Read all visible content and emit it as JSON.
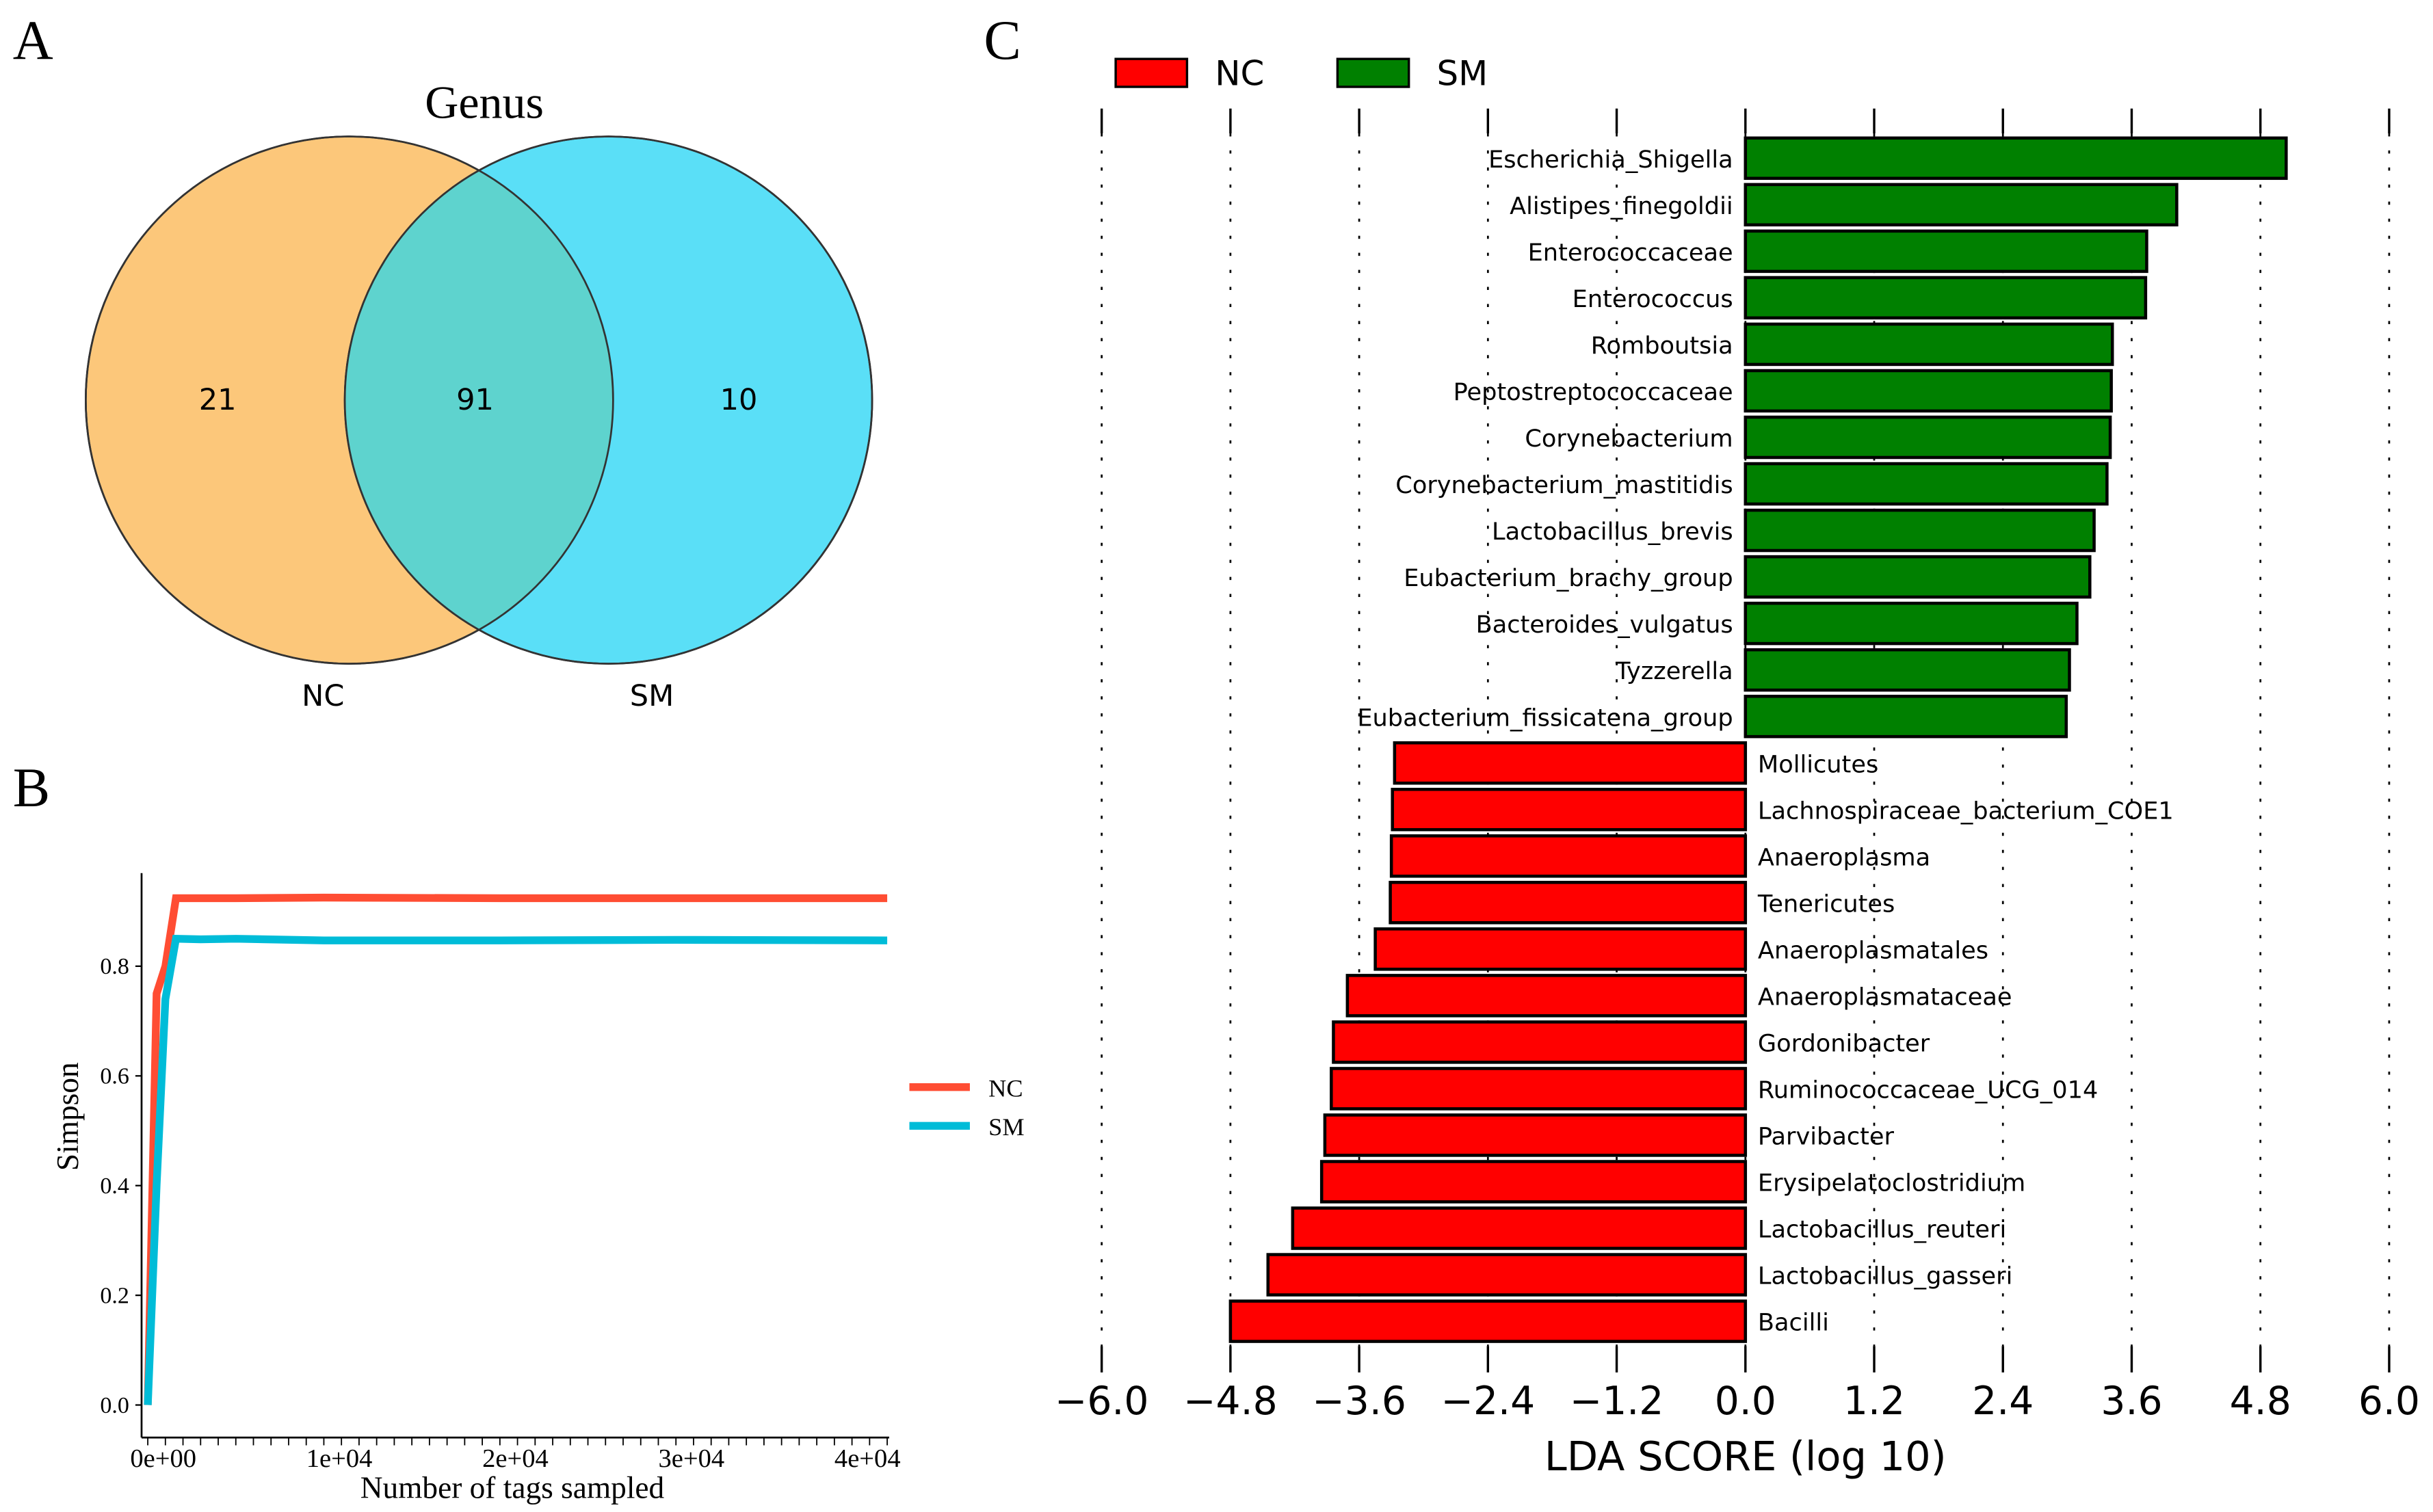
{
  "panel_labels": {
    "a": "A",
    "b": "B",
    "c": "C"
  },
  "chart_data": [
    {
      "type": "venn",
      "title": "Genus",
      "sets": [
        {
          "name": "NC",
          "unique": 21,
          "color": "#FCC77A"
        },
        {
          "name": "SM",
          "unique": 10,
          "color": "#5ADFF7"
        }
      ],
      "shared": 91,
      "overlap_color": "#5ED3CE"
    },
    {
      "type": "line",
      "xlabel": "Number of tags sampled",
      "ylabel": "Simpson",
      "xticks": [
        "0e+00",
        "1e+04",
        "2e+04",
        "3e+04",
        "4e+04"
      ],
      "yticks": [
        "0.0",
        "0.2",
        "0.4",
        "0.6",
        "0.8"
      ],
      "xlim": [
        0,
        42000
      ],
      "ylim": [
        0,
        0.95
      ],
      "legend_position": "right",
      "series": [
        {
          "name": "NC",
          "color": "#FF4D33",
          "x": [
            0,
            500,
            1000,
            1600,
            5000,
            10000,
            20000,
            30000,
            42000
          ],
          "y": [
            0.0,
            0.75,
            0.8,
            0.924,
            0.924,
            0.925,
            0.924,
            0.924,
            0.924
          ]
        },
        {
          "name": "SM",
          "color": "#00BCD8",
          "x": [
            0,
            500,
            1000,
            1600,
            3000,
            5000,
            10000,
            20000,
            30000,
            42000
          ],
          "y": [
            0.0,
            0.4,
            0.74,
            0.85,
            0.849,
            0.85,
            0.847,
            0.847,
            0.848,
            0.847
          ]
        }
      ]
    },
    {
      "type": "bar",
      "orientation": "horizontal",
      "xlabel": "LDA SCORE (log 10)",
      "xlim": [
        -6.0,
        6.0
      ],
      "xticks": [
        "−6.0",
        "−4.8",
        "−3.6",
        "−2.4",
        "−1.2",
        "0.0",
        "1.2",
        "2.4",
        "3.6",
        "4.8",
        "6.0"
      ],
      "legend": [
        {
          "name": "NC",
          "color": "#FF0000"
        },
        {
          "name": "SM",
          "color": "#008000"
        }
      ],
      "legend_position": "top-left",
      "grid": "vertical dotted",
      "bars": [
        {
          "label": "Escherichia_Shigella",
          "group": "SM",
          "value": 5.04
        },
        {
          "label": "Alistipes_finegoldii",
          "group": "SM",
          "value": 4.02
        },
        {
          "label": "Enterococcaceae",
          "group": "SM",
          "value": 3.74
        },
        {
          "label": "Enterococcus",
          "group": "SM",
          "value": 3.73
        },
        {
          "label": "Romboutsia",
          "group": "SM",
          "value": 3.42
        },
        {
          "label": "Peptostreptococcaceae",
          "group": "SM",
          "value": 3.41
        },
        {
          "label": "Corynebacterium",
          "group": "SM",
          "value": 3.4
        },
        {
          "label": "Corynebacterium_mastitidis",
          "group": "SM",
          "value": 3.37
        },
        {
          "label": "Lactobacillus_brevis",
          "group": "SM",
          "value": 3.25
        },
        {
          "label": "Eubacterium_brachy_group",
          "group": "SM",
          "value": 3.21
        },
        {
          "label": "Bacteroides_vulgatus",
          "group": "SM",
          "value": 3.09
        },
        {
          "label": "Tyzzerella",
          "group": "SM",
          "value": 3.02
        },
        {
          "label": "Eubacterium_fissicatena_group",
          "group": "SM",
          "value": 2.99
        },
        {
          "label": "Mollicutes",
          "group": "NC",
          "value": -3.27
        },
        {
          "label": "Lachnospiraceae_bacterium_COE1",
          "group": "NC",
          "value": -3.29
        },
        {
          "label": "Anaeroplasma",
          "group": "NC",
          "value": -3.3
        },
        {
          "label": "Tenericutes",
          "group": "NC",
          "value": -3.31
        },
        {
          "label": "Anaeroplasmatales",
          "group": "NC",
          "value": -3.45
        },
        {
          "label": "Anaeroplasmataceae",
          "group": "NC",
          "value": -3.71
        },
        {
          "label": "Gordonibacter",
          "group": "NC",
          "value": -3.84
        },
        {
          "label": "Ruminococcaceae_UCG_014",
          "group": "NC",
          "value": -3.86
        },
        {
          "label": "Parvibacter",
          "group": "NC",
          "value": -3.92
        },
        {
          "label": "Erysipelatoclostridium",
          "group": "NC",
          "value": -3.95
        },
        {
          "label": "Lactobacillus_reuteri",
          "group": "NC",
          "value": -4.22
        },
        {
          "label": "Lactobacillus_gasseri",
          "group": "NC",
          "value": -4.45
        },
        {
          "label": "Bacilli",
          "group": "NC",
          "value": -4.8
        }
      ]
    }
  ]
}
